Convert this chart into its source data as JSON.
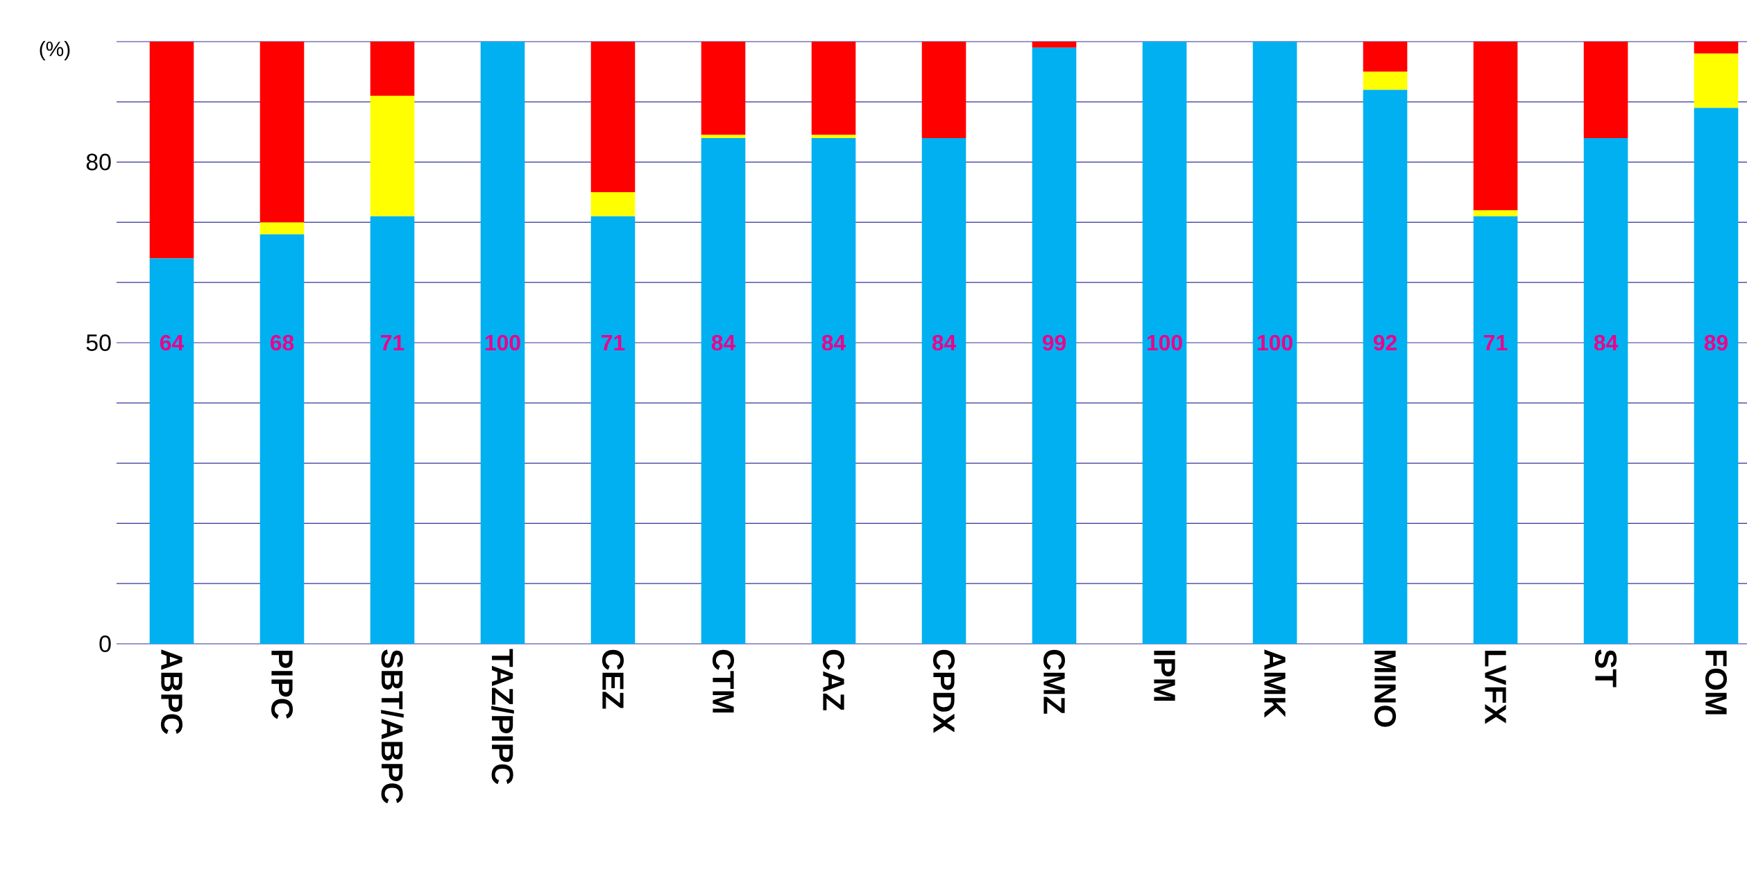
{
  "chart_data": {
    "type": "bar",
    "stacked": true,
    "ylabel": "(%)",
    "categories": [
      "ABPC",
      "PIPC",
      "SBT/ABPC",
      "TAZ/PIPC",
      "CEZ",
      "CTM",
      "CAZ",
      "CPDX",
      "CMZ",
      "IPM",
      "AMK",
      "MINO",
      "LVFX",
      "ST",
      "FOM"
    ],
    "series": [
      {
        "color": "#00b0f0",
        "values": [
          64,
          68,
          71,
          100,
          71,
          84,
          84,
          84,
          99,
          100,
          100,
          92,
          71,
          84,
          89
        ],
        "value_labels": [
          "64",
          "68",
          "71",
          "100",
          "71",
          "84",
          "84",
          "84",
          "99",
          "100",
          "100",
          "92",
          "71",
          "84",
          "89"
        ]
      },
      {
        "color": "#ffff00",
        "values": [
          0,
          2,
          20,
          0,
          4,
          0.5,
          0.5,
          0,
          0,
          0,
          0,
          3,
          1,
          0,
          9
        ]
      },
      {
        "color": "#ff0000",
        "values": [
          36,
          30,
          9,
          0,
          25,
          15.5,
          15.5,
          16,
          1,
          0,
          0,
          5,
          28,
          16,
          2
        ]
      }
    ],
    "ylim": [
      0,
      100
    ],
    "yticks": [
      0,
      {
        "value": 10,
        "label": null
      },
      {
        "value": 20,
        "label": null
      },
      {
        "value": 30,
        "label": null
      },
      {
        "value": 40,
        "label": null
      },
      50,
      {
        "value": 60,
        "label": null
      },
      {
        "value": 70,
        "label": null
      },
      80,
      {
        "value": 90,
        "label": null
      },
      {
        "value": 100,
        "label": null
      }
    ],
    "grid": "y"
  }
}
